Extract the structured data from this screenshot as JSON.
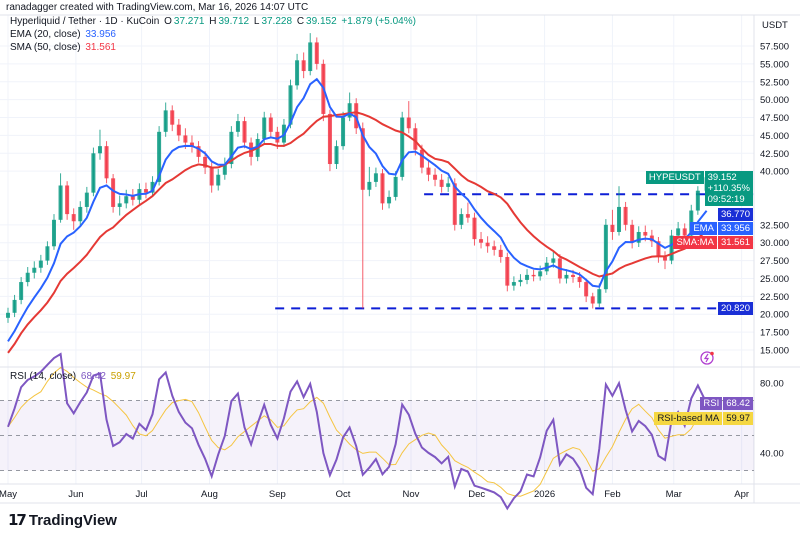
{
  "header": {
    "attribution": "ranadagger created with TradingView.com, Mar 16, 2026 14:07 UTC"
  },
  "legend": {
    "symbol": "Hyperliquid / Tether · 1D · KuCoin",
    "o_label": "O",
    "o": "37.271",
    "h_label": "H",
    "h": "39.712",
    "l_label": "L",
    "l": "37.228",
    "c_label": "C",
    "c": "39.152",
    "change": "+1.879 (+5.04%)",
    "ema_label": "EMA (20, close)",
    "ema_value": "33.956",
    "sma_label": "SMA (50, close)",
    "sma_value": "31.561"
  },
  "rsi_legend": {
    "label": "RSI (14, close)",
    "rsi": "68.42",
    "ma": "59.97"
  },
  "axis": {
    "currency": "USDT"
  },
  "price_labels": {
    "symbol": "HYPEUSDT",
    "last": "39.152",
    "change_pct": "+110.35%",
    "countdown": "09:52:19",
    "resistance": "36.770",
    "ema_tag": "EMA",
    "ema": "33.956",
    "sma_tag": "SMA:MA",
    "sma": "31.561",
    "support": "20.820",
    "rsi_tag": "RSI",
    "rsi": "68.42",
    "rsi_ma_tag": "RSI-based MA",
    "rsi_ma": "59.97"
  },
  "footer": {
    "logo": "TradingView"
  },
  "colors": {
    "up": "#089981",
    "down": "#f23645",
    "ema": "#2962ff",
    "sma": "#e53935",
    "rsi": "#7e57c2",
    "rsi_ma": "#f5c542",
    "levels": "#0d1fd6"
  },
  "chart_data": {
    "type": "candlestick",
    "ylim": [
      13.5,
      60
    ],
    "price_ticks": [
      "57.500",
      "55.000",
      "52.500",
      "50.000",
      "47.500",
      "45.000",
      "42.500",
      "40.000",
      "32.500",
      "30.000",
      "27.500",
      "25.000",
      "22.500",
      "20.000",
      "17.500",
      "15.000"
    ],
    "x_ticks": [
      {
        "label": "May",
        "date": "2025-05-01"
      },
      {
        "label": "Jun",
        "date": "2025-06-01"
      },
      {
        "label": "Jul",
        "date": "2025-07-01"
      },
      {
        "label": "Aug",
        "date": "2025-08-01"
      },
      {
        "label": "Sep",
        "date": "2025-09-01"
      },
      {
        "label": "Oct",
        "date": "2025-10-01"
      },
      {
        "label": "Nov",
        "date": "2025-11-01"
      },
      {
        "label": "Dec",
        "date": "2025-12-01"
      },
      {
        "label": "2026",
        "date": "2026-01-01"
      },
      {
        "label": "Feb",
        "date": "2026-02-01"
      },
      {
        "label": "Mar",
        "date": "2026-03-01"
      },
      {
        "label": "Apr",
        "date": "2026-04-01"
      }
    ],
    "horizontal_lines": [
      {
        "price": 36.77,
        "start": "2025-11-07"
      },
      {
        "price": 20.82,
        "start": "2025-08-31"
      }
    ],
    "rsi": {
      "ticks": [
        "80.00",
        "40.00"
      ],
      "levels": [
        70,
        50,
        30
      ],
      "last": 68.42,
      "ma_last": 59.97
    },
    "candles": [
      [
        "2025-05-01",
        19.5,
        20.9,
        18.8,
        20.2
      ],
      [
        "2025-05-04",
        20.2,
        22.7,
        19.6,
        22.0
      ],
      [
        "2025-05-07",
        22.0,
        25.2,
        21.4,
        24.5
      ],
      [
        "2025-05-10",
        24.5,
        26.6,
        23.9,
        25.8
      ],
      [
        "2025-05-13",
        25.8,
        27.4,
        25.0,
        26.5
      ],
      [
        "2025-05-16",
        26.5,
        28.3,
        25.8,
        27.5
      ],
      [
        "2025-05-19",
        27.5,
        30.2,
        26.9,
        29.5
      ],
      [
        "2025-05-22",
        29.5,
        34.0,
        29.0,
        33.2
      ],
      [
        "2025-05-25",
        33.2,
        39.7,
        32.8,
        38.0
      ],
      [
        "2025-05-28",
        38.0,
        38.6,
        33.2,
        34.0
      ],
      [
        "2025-05-31",
        34.0,
        34.8,
        31.8,
        33.0
      ],
      [
        "2025-06-03",
        33.0,
        35.8,
        32.3,
        35.0
      ],
      [
        "2025-06-06",
        35.0,
        37.8,
        34.2,
        37.0
      ],
      [
        "2025-06-09",
        37.0,
        43.3,
        36.5,
        42.5
      ],
      [
        "2025-06-12",
        42.5,
        45.8,
        41.6,
        43.5
      ],
      [
        "2025-06-15",
        43.5,
        44.2,
        38.3,
        39.0
      ],
      [
        "2025-06-18",
        39.0,
        39.6,
        34.2,
        35.0
      ],
      [
        "2025-06-21",
        35.0,
        36.6,
        33.8,
        35.5
      ],
      [
        "2025-06-24",
        35.5,
        37.4,
        34.8,
        36.5
      ],
      [
        "2025-06-27",
        36.5,
        37.5,
        35.2,
        36.0
      ],
      [
        "2025-06-30",
        36.0,
        38.3,
        35.4,
        37.5
      ],
      [
        "2025-07-03",
        37.5,
        38.4,
        36.2,
        37.0
      ],
      [
        "2025-07-06",
        37.0,
        39.3,
        36.4,
        38.5
      ],
      [
        "2025-07-09",
        38.5,
        46.3,
        38.0,
        45.5
      ],
      [
        "2025-07-12",
        45.5,
        49.6,
        44.8,
        48.5
      ],
      [
        "2025-07-15",
        48.5,
        49.2,
        45.6,
        46.5
      ],
      [
        "2025-07-18",
        46.5,
        47.3,
        44.2,
        45.0
      ],
      [
        "2025-07-21",
        45.0,
        46.0,
        43.1,
        44.0
      ],
      [
        "2025-07-24",
        44.0,
        45.0,
        42.6,
        43.5
      ],
      [
        "2025-07-27",
        43.5,
        44.2,
        41.2,
        42.0
      ],
      [
        "2025-07-30",
        42.0,
        42.8,
        39.6,
        40.5
      ],
      [
        "2025-08-02",
        40.5,
        41.2,
        37.0,
        38.0
      ],
      [
        "2025-08-05",
        38.0,
        40.3,
        37.3,
        39.5
      ],
      [
        "2025-08-08",
        39.5,
        41.9,
        38.8,
        41.0
      ],
      [
        "2025-08-11",
        41.0,
        46.3,
        40.4,
        45.5
      ],
      [
        "2025-08-14",
        45.5,
        48.0,
        44.8,
        47.0
      ],
      [
        "2025-08-17",
        47.0,
        47.6,
        43.2,
        44.0
      ],
      [
        "2025-08-20",
        44.0,
        44.7,
        40.8,
        42.0
      ],
      [
        "2025-08-23",
        42.0,
        45.3,
        41.4,
        44.5
      ],
      [
        "2025-08-26",
        44.5,
        48.3,
        43.9,
        47.5
      ],
      [
        "2025-08-29",
        47.5,
        48.1,
        44.7,
        45.5
      ],
      [
        "2025-09-01",
        45.5,
        46.2,
        43.1,
        44.0
      ],
      [
        "2025-09-04",
        44.0,
        47.3,
        43.4,
        46.5
      ],
      [
        "2025-09-07",
        46.5,
        52.8,
        46.0,
        52.0
      ],
      [
        "2025-09-10",
        52.0,
        56.4,
        51.4,
        55.5
      ],
      [
        "2025-09-13",
        55.5,
        56.6,
        53.0,
        54.0
      ],
      [
        "2025-09-16",
        54.0,
        59.3,
        53.4,
        58.0
      ],
      [
        "2025-09-19",
        58.0,
        58.7,
        54.2,
        55.0
      ],
      [
        "2025-09-22",
        55.0,
        55.6,
        47.0,
        48.0
      ],
      [
        "2025-09-25",
        48.0,
        48.6,
        40.0,
        41.0
      ],
      [
        "2025-09-28",
        41.0,
        44.3,
        40.3,
        43.5
      ],
      [
        "2025-10-01",
        43.5,
        48.3,
        43.0,
        47.5
      ],
      [
        "2025-10-04",
        47.5,
        51.0,
        47.0,
        49.5
      ],
      [
        "2025-10-07",
        49.5,
        50.2,
        45.2,
        46.0
      ],
      [
        "2025-10-10",
        46.0,
        46.8,
        20.8,
        37.4
      ],
      [
        "2025-10-13",
        37.4,
        40.6,
        36.5,
        38.5
      ],
      [
        "2025-10-16",
        38.5,
        40.5,
        37.8,
        39.7
      ],
      [
        "2025-10-19",
        39.7,
        40.3,
        34.6,
        35.5
      ],
      [
        "2025-10-22",
        35.5,
        37.3,
        34.8,
        36.4
      ],
      [
        "2025-10-25",
        36.4,
        40.0,
        35.9,
        39.2
      ],
      [
        "2025-10-28",
        39.2,
        48.3,
        38.7,
        47.5
      ],
      [
        "2025-10-31",
        47.5,
        49.8,
        45.3,
        46.0
      ],
      [
        "2025-11-03",
        46.0,
        46.7,
        42.2,
        43.0
      ],
      [
        "2025-11-06",
        43.0,
        43.7,
        39.7,
        40.5
      ],
      [
        "2025-11-09",
        40.5,
        41.4,
        38.6,
        39.5
      ],
      [
        "2025-11-12",
        39.5,
        40.4,
        37.9,
        38.8
      ],
      [
        "2025-11-15",
        38.8,
        39.6,
        37.0,
        37.8
      ],
      [
        "2025-11-18",
        37.8,
        39.2,
        37.1,
        38.3
      ],
      [
        "2025-11-21",
        38.3,
        39.0,
        31.7,
        32.5
      ],
      [
        "2025-11-24",
        32.5,
        34.8,
        31.9,
        34.0
      ],
      [
        "2025-11-27",
        34.0,
        35.6,
        32.8,
        33.5
      ],
      [
        "2025-11-30",
        33.5,
        34.2,
        29.6,
        30.5
      ],
      [
        "2025-12-03",
        30.5,
        31.5,
        29.2,
        30.0
      ],
      [
        "2025-12-06",
        30.0,
        30.9,
        28.6,
        29.5
      ],
      [
        "2025-12-09",
        29.5,
        30.3,
        28.2,
        29.0
      ],
      [
        "2025-12-12",
        29.0,
        29.7,
        27.2,
        28.0
      ],
      [
        "2025-12-15",
        28.0,
        28.6,
        23.2,
        24.0
      ],
      [
        "2025-12-18",
        24.0,
        25.3,
        23.3,
        24.5
      ],
      [
        "2025-12-21",
        24.5,
        25.6,
        23.9,
        24.8
      ],
      [
        "2025-12-24",
        24.8,
        26.3,
        24.2,
        25.5
      ],
      [
        "2025-12-27",
        25.5,
        26.2,
        24.6,
        25.3
      ],
      [
        "2025-12-30",
        25.3,
        26.8,
        24.7,
        26.0
      ],
      [
        "2026-01-02",
        26.0,
        28.0,
        25.5,
        27.2
      ],
      [
        "2026-01-05",
        27.2,
        28.7,
        26.5,
        27.8
      ],
      [
        "2026-01-08",
        27.8,
        28.4,
        24.3,
        25.0
      ],
      [
        "2026-01-11",
        25.0,
        26.3,
        24.3,
        25.5
      ],
      [
        "2026-01-14",
        25.5,
        26.2,
        24.4,
        25.2
      ],
      [
        "2026-01-17",
        25.2,
        25.9,
        23.7,
        24.5
      ],
      [
        "2026-01-20",
        24.5,
        25.0,
        21.7,
        22.5
      ],
      [
        "2026-01-23",
        22.5,
        23.0,
        20.8,
        21.5
      ],
      [
        "2026-01-26",
        21.5,
        24.3,
        21.0,
        23.5
      ],
      [
        "2026-01-29",
        23.5,
        33.3,
        23.0,
        32.5
      ],
      [
        "2026-02-01",
        32.5,
        34.6,
        30.4,
        31.5
      ],
      [
        "2026-02-04",
        31.5,
        37.9,
        31.0,
        35.0
      ],
      [
        "2026-02-07",
        35.0,
        35.7,
        31.7,
        32.5
      ],
      [
        "2026-02-10",
        32.5,
        33.2,
        29.2,
        30.0
      ],
      [
        "2026-02-13",
        30.0,
        32.3,
        29.4,
        31.5
      ],
      [
        "2026-02-16",
        31.5,
        32.4,
        30.2,
        31.0
      ],
      [
        "2026-02-19",
        31.0,
        31.8,
        29.4,
        30.2
      ],
      [
        "2026-02-22",
        30.2,
        30.8,
        27.2,
        28.0
      ],
      [
        "2026-02-25",
        28.0,
        28.8,
        26.3,
        27.5
      ],
      [
        "2026-02-28",
        27.5,
        31.8,
        27.0,
        31.0
      ],
      [
        "2026-03-03",
        31.0,
        32.9,
        30.3,
        32.0
      ],
      [
        "2026-03-06",
        32.0,
        32.7,
        30.2,
        31.0
      ],
      [
        "2026-03-09",
        31.0,
        35.3,
        30.5,
        34.5
      ],
      [
        "2026-03-12",
        34.5,
        37.9,
        33.9,
        37.271
      ],
      [
        "2026-03-16",
        37.271,
        39.712,
        37.228,
        39.152
      ]
    ]
  }
}
